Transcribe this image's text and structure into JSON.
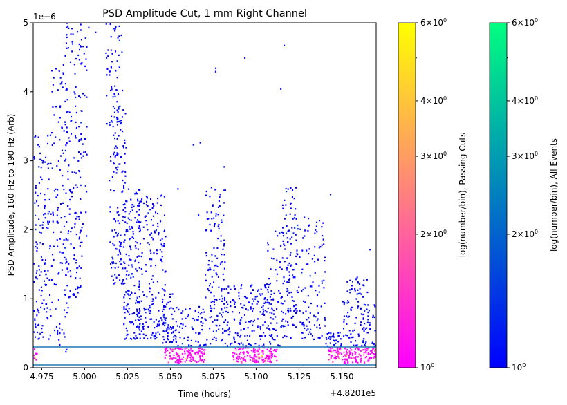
{
  "chart_data": {
    "type": "heatmap",
    "title": "PSD Amplitude Cut, 1 mm Right Channel",
    "xlabel": "Time (hours)",
    "ylabel": "PSD Amplitude, 160 Hz to 190 Hz (Arb)",
    "x_offset_label": "+4.8201e5",
    "y_scale_label": "1e−6",
    "xlim": [
      4.97,
      5.17
    ],
    "ylim": [
      0,
      5
    ],
    "x_ticks": [
      4.975,
      5.0,
      5.025,
      5.05,
      5.075,
      5.1,
      5.125,
      5.15
    ],
    "x_tick_labels": [
      "4.975",
      "5.000",
      "5.025",
      "5.050",
      "5.075",
      "5.100",
      "5.125",
      "5.150"
    ],
    "y_ticks": [
      0,
      1,
      2,
      3,
      4,
      5
    ],
    "y_tick_labels": [
      "0",
      "1",
      "2",
      "3",
      "4",
      "5"
    ],
    "cut_lines": [
      0.04,
      0.3
    ],
    "cut_line_color": "#1f77b4",
    "all_events": [
      {
        "x": [
          4.97,
          4.98
        ],
        "ylo": 0.4,
        "yhi": 3.4,
        "n": 140
      },
      {
        "x": [
          4.98,
          4.99
        ],
        "ylo": 0.2,
        "yhi": 4.4,
        "n": 130
      },
      {
        "x": [
          4.988,
          4.998
        ],
        "ylo": 1.0,
        "yhi": 5.0,
        "n": 140
      },
      {
        "x": [
          4.996,
          5.001
        ],
        "ylo": 1.8,
        "yhi": 4.9,
        "n": 40
      },
      {
        "x": [
          5.012,
          5.022
        ],
        "ylo": 3.5,
        "yhi": 5.0,
        "n": 60
      },
      {
        "x": [
          5.014,
          5.024
        ],
        "ylo": 1.2,
        "yhi": 3.8,
        "n": 140
      },
      {
        "x": [
          5.022,
          5.032
        ],
        "ylo": 0.4,
        "yhi": 2.6,
        "n": 150
      },
      {
        "x": [
          5.03,
          5.047
        ],
        "ylo": 0.4,
        "yhi": 2.5,
        "n": 200
      },
      {
        "x": [
          5.045,
          5.052
        ],
        "ylo": 0.3,
        "yhi": 1.2,
        "n": 40
      },
      {
        "x": [
          5.05,
          5.07
        ],
        "ylo": 0.3,
        "yhi": 0.9,
        "n": 80
      },
      {
        "x": [
          5.07,
          5.082
        ],
        "ylo": 0.3,
        "yhi": 2.6,
        "n": 150
      },
      {
        "x": [
          5.082,
          5.11
        ],
        "ylo": 0.3,
        "yhi": 1.2,
        "n": 180
      },
      {
        "x": [
          5.106,
          5.116
        ],
        "ylo": 0.3,
        "yhi": 2.0,
        "n": 60
      },
      {
        "x": [
          5.115,
          5.123
        ],
        "ylo": 0.4,
        "yhi": 2.6,
        "n": 110
      },
      {
        "x": [
          5.123,
          5.14
        ],
        "ylo": 0.4,
        "yhi": 2.2,
        "n": 120
      },
      {
        "x": [
          5.14,
          5.15
        ],
        "ylo": 0.3,
        "yhi": 0.5,
        "n": 30
      },
      {
        "x": [
          5.15,
          5.165
        ],
        "ylo": 0.3,
        "yhi": 1.3,
        "n": 90
      },
      {
        "x": [
          5.162,
          5.17
        ],
        "ylo": 0.3,
        "yhi": 0.9,
        "n": 30
      }
    ],
    "all_events_sparse": [
      [
        5.002,
        4.92
      ],
      [
        5.006,
        4.85
      ],
      [
        5.054,
        2.58
      ],
      [
        5.063,
        3.22
      ],
      [
        5.067,
        3.25
      ],
      [
        5.076,
        4.28
      ],
      [
        5.076,
        4.33
      ],
      [
        5.093,
        4.48
      ],
      [
        5.116,
        4.66
      ],
      [
        5.114,
        4.03
      ],
      [
        5.066,
        2.2
      ],
      [
        5.081,
        2.9
      ],
      [
        5.112,
        1.9
      ],
      [
        5.143,
        2.5
      ],
      [
        5.166,
        1.7
      ]
    ],
    "passing_cuts": [
      {
        "x": [
          4.97,
          4.972
        ],
        "ylo": 0.08,
        "yhi": 0.28,
        "n": 8
      },
      {
        "x": [
          5.046,
          5.07
        ],
        "ylo": 0.06,
        "yhi": 0.28,
        "n": 140
      },
      {
        "x": [
          5.086,
          5.112
        ],
        "ylo": 0.06,
        "yhi": 0.28,
        "n": 150
      },
      {
        "x": [
          5.142,
          5.17
        ],
        "ylo": 0.06,
        "yhi": 0.28,
        "n": 150
      }
    ],
    "colorbars": [
      {
        "label": "log(number/bin), Passing Cuts",
        "colormap": "spring",
        "colors": [
          "#ff00ff",
          "#ffff00"
        ],
        "range": [
          1,
          6
        ],
        "ticks": [
          1,
          2,
          3,
          4,
          6
        ]
      },
      {
        "label": "log(number/bin), All Events",
        "colormap": "winter",
        "colors": [
          "#0000ff",
          "#00ff80"
        ],
        "range": [
          1,
          6
        ],
        "ticks": [
          1,
          2,
          3,
          4,
          6
        ]
      }
    ]
  }
}
